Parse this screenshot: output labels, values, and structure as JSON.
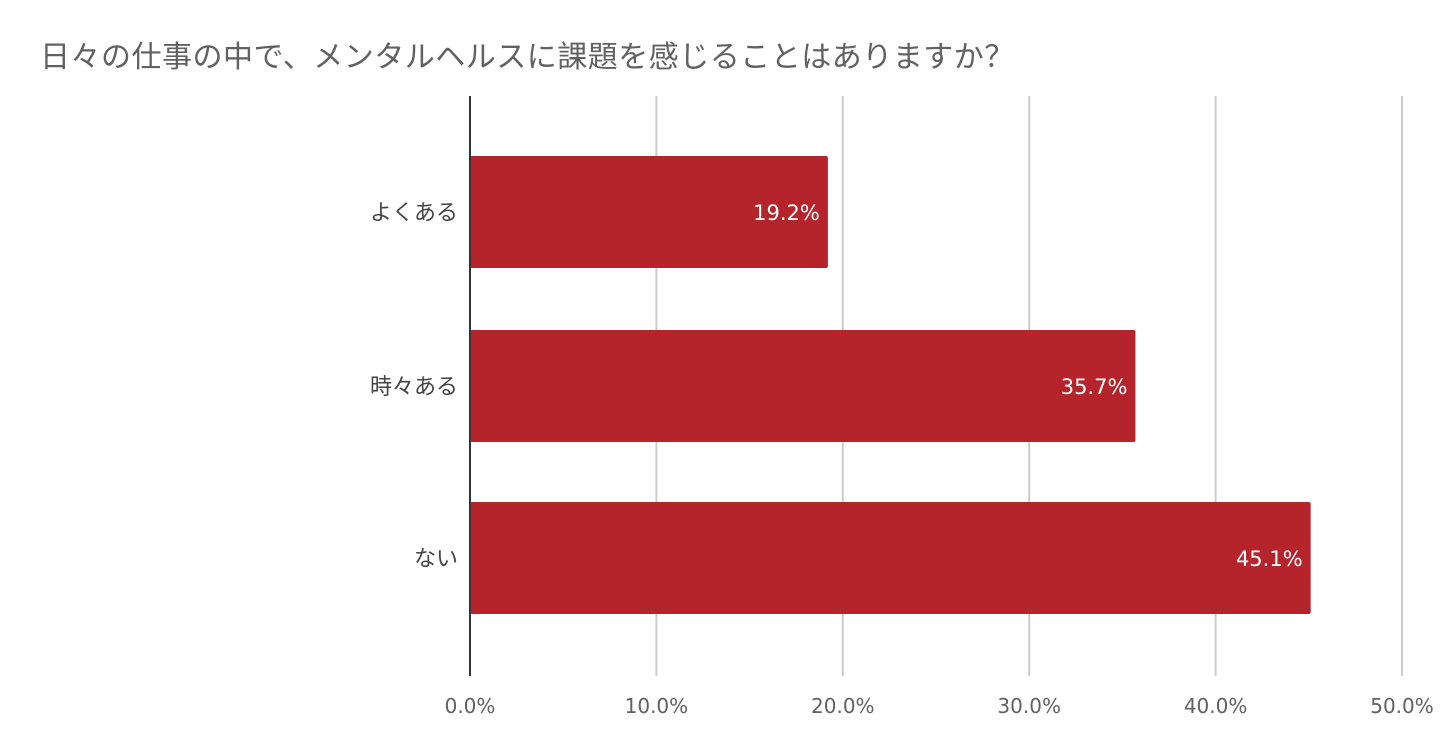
{
  "chart_data": {
    "type": "bar",
    "orientation": "horizontal",
    "title": "日々の仕事の中で、メンタルヘルスに課題を感じることはありますか？",
    "categories": [
      "よくある",
      "時々ある",
      "ない"
    ],
    "values": [
      19.2,
      35.7,
      45.1
    ],
    "data_labels": [
      "19.2%",
      "35.7%",
      "45.1%"
    ],
    "xlim": [
      0,
      50
    ],
    "x_ticks": [
      0,
      10,
      20,
      30,
      40,
      50
    ],
    "x_tick_labels": [
      "0.0%",
      "10.0%",
      "20.0%",
      "30.0%",
      "40.0%",
      "50.0%"
    ],
    "grid": true,
    "legend": "none",
    "bar_color": "#b5232b"
  }
}
